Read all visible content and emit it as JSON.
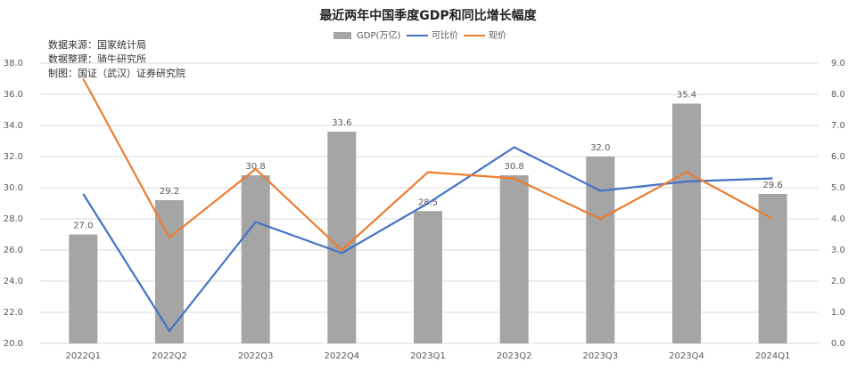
{
  "chart_data": {
    "type": "bar",
    "title": "最近两年中国季度GDP和同比增长幅度",
    "annotations": [
      "数据来源：国家统计局",
      "数据整理：骑牛研究所",
      "制图：国证（武汉）证券研究院"
    ],
    "categories": [
      "2022Q1",
      "2022Q2",
      "2022Q3",
      "2022Q4",
      "2023Q1",
      "2023Q2",
      "2023Q3",
      "2023Q4",
      "2024Q1"
    ],
    "series": [
      {
        "name": "GDP(万亿)",
        "color": "#a5a5a5",
        "values": [
          27.0,
          29.2,
          30.8,
          33.6,
          28.5,
          30.8,
          32.0,
          35.4,
          29.6
        ],
        "value_labels": [
          "27.0",
          "29.2",
          "30.8",
          "33.6",
          "28.5",
          "30.8",
          "32.0",
          "35.4",
          "29.6"
        ]
      },
      {
        "name": "可比价",
        "color": "#4472c4",
        "axis": "y2",
        "values": [
          4.8,
          0.4,
          3.9,
          2.9,
          4.5,
          6.3,
          4.9,
          5.2,
          5.3
        ]
      },
      {
        "name": "现价",
        "color": "#ed7d31",
        "axis": "y2",
        "values": [
          8.5,
          3.4,
          5.6,
          3.0,
          5.5,
          5.3,
          4.0,
          5.5,
          4.0
        ]
      }
    ],
    "ylim": [
      20,
      38
    ],
    "yticks": [
      {
        "value": 20,
        "label": "20.0"
      },
      {
        "value": 22,
        "label": "22.0"
      },
      {
        "value": 24,
        "label": "24.0"
      },
      {
        "value": 26,
        "label": "26.0"
      },
      {
        "value": 28,
        "label": "28.0"
      },
      {
        "value": 30,
        "label": "30.0"
      },
      {
        "value": 32,
        "label": "32.0"
      },
      {
        "value": 34,
        "label": "34.0"
      },
      {
        "value": 36,
        "label": "36.0"
      },
      {
        "value": 38,
        "label": "38.0"
      }
    ],
    "y2lim": [
      0,
      9
    ],
    "y2ticks": [
      {
        "value": 0,
        "label": "0.0"
      },
      {
        "value": 1,
        "label": "1.0"
      },
      {
        "value": 2,
        "label": "2.0"
      },
      {
        "value": 3,
        "label": "3.0"
      },
      {
        "value": 4,
        "label": "4.0"
      },
      {
        "value": 5,
        "label": "5.0"
      },
      {
        "value": 6,
        "label": "6.0"
      },
      {
        "value": 7,
        "label": "7.0"
      },
      {
        "value": 8,
        "label": "8.0"
      },
      {
        "value": 9,
        "label": "9.0"
      }
    ],
    "grid": true,
    "legend": "top"
  }
}
